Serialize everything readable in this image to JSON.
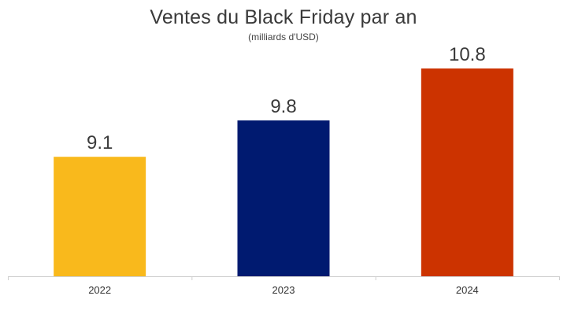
{
  "chart_data": {
    "type": "bar",
    "title": "Ventes du Black Friday par an",
    "subtitle": "(milliards d'USD)",
    "categories": [
      "2022",
      "2023",
      "2024"
    ],
    "values": [
      9.1,
      9.8,
      10.8
    ],
    "value_labels": [
      "9.1",
      "9.8",
      "10.8"
    ],
    "colors": [
      "#F9B91C",
      "#001A70",
      "#CC3300"
    ],
    "xlabel": "",
    "ylabel": "",
    "ylim": [
      6.8,
      10.8
    ],
    "grid": false,
    "y_axis_shown": false
  }
}
